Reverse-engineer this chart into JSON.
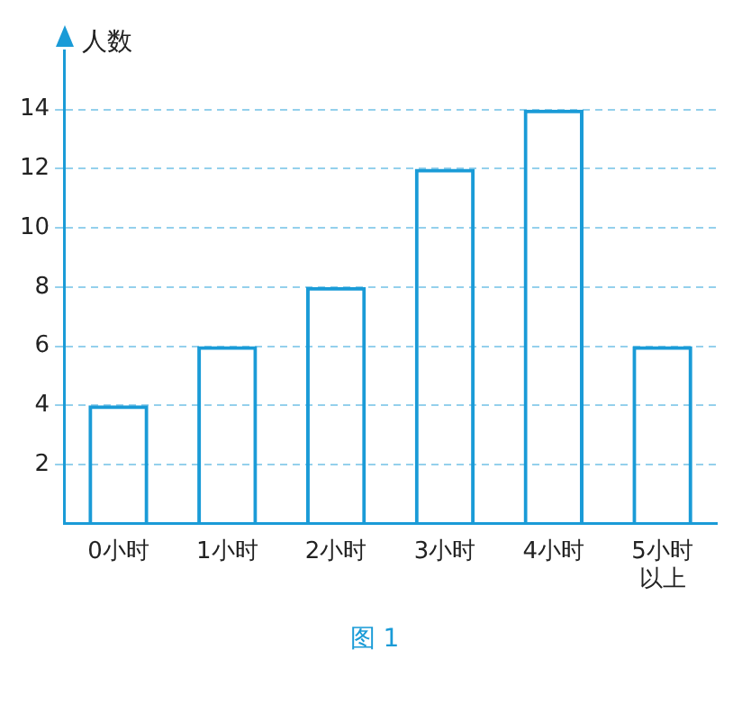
{
  "chart_data": {
    "type": "bar",
    "ylabel": "人数",
    "categories": [
      "0小时",
      "1小时",
      "2小时",
      "3小时",
      "4小时",
      "5小时以上"
    ],
    "values": [
      4,
      6,
      8,
      12,
      14,
      6
    ],
    "color": "#1a9bd7",
    "ylim": [
      0,
      16
    ],
    "yticks": [
      2,
      4,
      6,
      8,
      10,
      12,
      14
    ],
    "grid": "y",
    "annotations": [
      "图 1"
    ]
  }
}
